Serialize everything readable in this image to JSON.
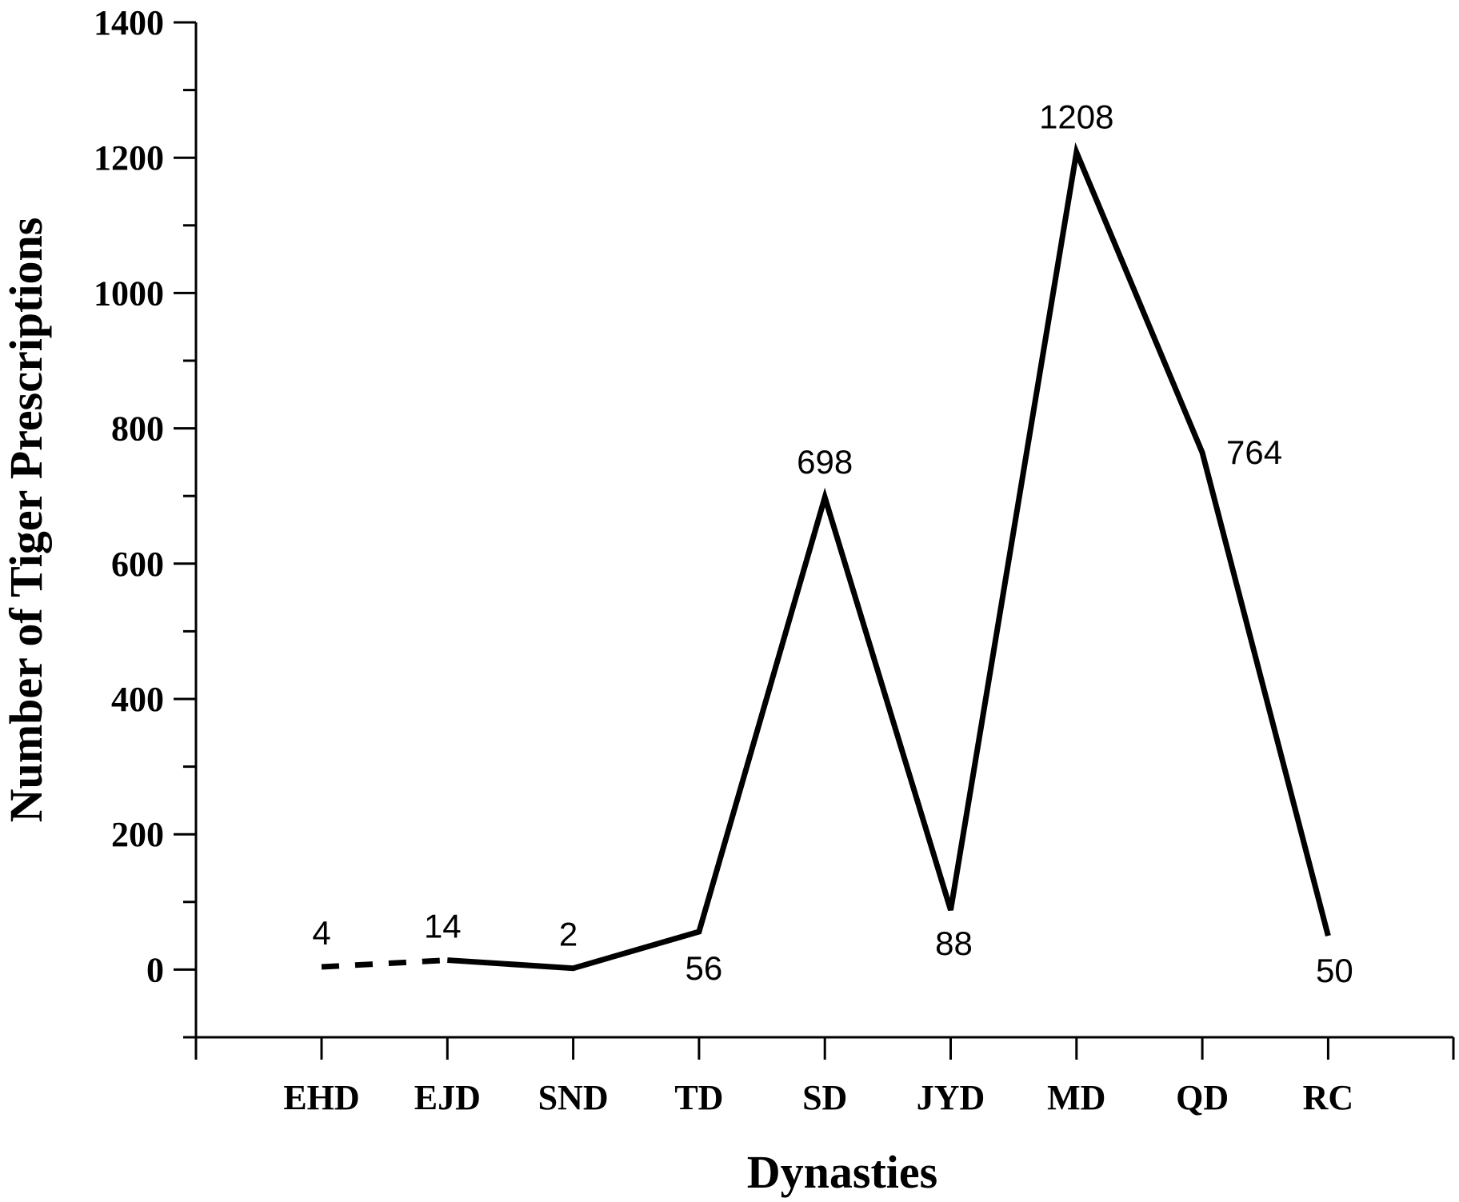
{
  "chart_data": {
    "type": "line",
    "title": "",
    "xlabel": "Dynasties",
    "ylabel": "Number of Tiger Prescriptions",
    "categories": [
      "EHD",
      "EJD",
      "SND",
      "TD",
      "SD",
      "JYD",
      "MD",
      "QD",
      "RC"
    ],
    "series": [
      {
        "values": [
          4,
          14,
          2,
          56,
          698,
          88,
          1208,
          764,
          50
        ]
      }
    ],
    "data_labels": [
      "4",
      "14",
      "2",
      "56",
      "698",
      "88",
      "1208",
      "764",
      "50"
    ],
    "dashed_segment": [
      "EHD",
      "EJD"
    ],
    "ylim": [
      -100,
      1400
    ],
    "yticks": [
      0,
      200,
      400,
      600,
      800,
      1000,
      1200,
      1400
    ],
    "ytick_labels": [
      "0",
      "200",
      "400",
      "600",
      "800",
      "1000",
      "1200",
      "1400"
    ],
    "grid": false,
    "colors": {
      "line": "#000000"
    }
  }
}
